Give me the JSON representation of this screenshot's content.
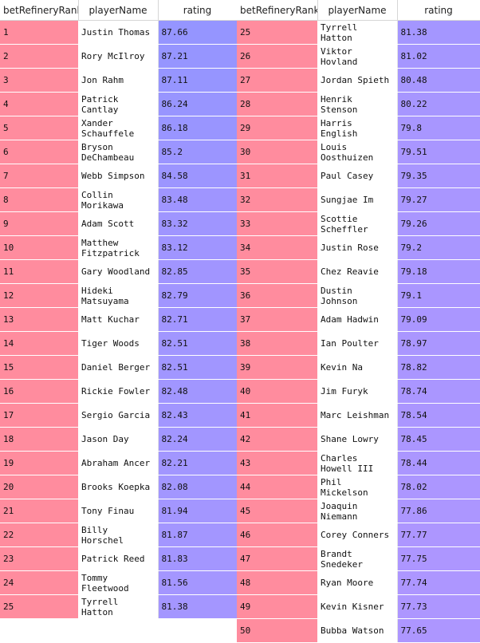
{
  "colors": {
    "rank_cell": "#ff8c9e",
    "name_cell": "#ffffff",
    "rating_high": "#9595ff",
    "rating_low": "#ad96ff"
  },
  "columns": {
    "rank": "betRefineryRank",
    "name": "playerName",
    "rating": "rating"
  },
  "left_rows": [
    {
      "rank": "1",
      "name": "Justin Thomas",
      "rating": "87.66"
    },
    {
      "rank": "2",
      "name": "Rory McIlroy",
      "rating": "87.21"
    },
    {
      "rank": "3",
      "name": "Jon Rahm",
      "rating": "87.11"
    },
    {
      "rank": "4",
      "name": "Patrick Cantlay",
      "rating": "86.24"
    },
    {
      "rank": "5",
      "name": "Xander Schauffele",
      "rating": "86.18"
    },
    {
      "rank": "6",
      "name": "Bryson DeChambeau",
      "rating": "85.2"
    },
    {
      "rank": "7",
      "name": "Webb Simpson",
      "rating": "84.58"
    },
    {
      "rank": "8",
      "name": "Collin Morikawa",
      "rating": "83.48"
    },
    {
      "rank": "9",
      "name": "Adam Scott",
      "rating": "83.32"
    },
    {
      "rank": "10",
      "name": "Matthew Fitzpatrick",
      "rating": "83.12"
    },
    {
      "rank": "11",
      "name": "Gary Woodland",
      "rating": "82.85"
    },
    {
      "rank": "12",
      "name": "Hideki Matsuyama",
      "rating": "82.79"
    },
    {
      "rank": "13",
      "name": "Matt Kuchar",
      "rating": "82.71"
    },
    {
      "rank": "14",
      "name": "Tiger Woods",
      "rating": "82.51"
    },
    {
      "rank": "15",
      "name": "Daniel Berger",
      "rating": "82.51"
    },
    {
      "rank": "16",
      "name": "Rickie Fowler",
      "rating": "82.48"
    },
    {
      "rank": "17",
      "name": "Sergio Garcia",
      "rating": "82.43"
    },
    {
      "rank": "18",
      "name": "Jason Day",
      "rating": "82.24"
    },
    {
      "rank": "19",
      "name": "Abraham Ancer",
      "rating": "82.21"
    },
    {
      "rank": "20",
      "name": "Brooks Koepka",
      "rating": "82.08"
    },
    {
      "rank": "21",
      "name": "Tony Finau",
      "rating": "81.94"
    },
    {
      "rank": "22",
      "name": "Billy Horschel",
      "rating": "81.87"
    },
    {
      "rank": "23",
      "name": "Patrick Reed",
      "rating": "81.83"
    },
    {
      "rank": "24",
      "name": "Tommy Fleetwood",
      "rating": "81.56"
    },
    {
      "rank": "25",
      "name": "Tyrrell Hatton",
      "rating": "81.38"
    }
  ],
  "right_rows": [
    {
      "rank": "25",
      "name": "Tyrrell Hatton",
      "rating": "81.38"
    },
    {
      "rank": "26",
      "name": "Viktor Hovland",
      "rating": "81.02"
    },
    {
      "rank": "27",
      "name": "Jordan Spieth",
      "rating": "80.48"
    },
    {
      "rank": "28",
      "name": "Henrik Stenson",
      "rating": "80.22"
    },
    {
      "rank": "29",
      "name": "Harris English",
      "rating": "79.8"
    },
    {
      "rank": "30",
      "name": "Louis Oosthuizen",
      "rating": "79.51"
    },
    {
      "rank": "31",
      "name": "Paul Casey",
      "rating": "79.35"
    },
    {
      "rank": "32",
      "name": "Sungjae Im",
      "rating": "79.27"
    },
    {
      "rank": "33",
      "name": "Scottie Scheffler",
      "rating": "79.26"
    },
    {
      "rank": "34",
      "name": "Justin Rose",
      "rating": "79.2"
    },
    {
      "rank": "35",
      "name": "Chez Reavie",
      "rating": "79.18"
    },
    {
      "rank": "36",
      "name": "Dustin Johnson",
      "rating": "79.1"
    },
    {
      "rank": "37",
      "name": "Adam Hadwin",
      "rating": "79.09"
    },
    {
      "rank": "38",
      "name": "Ian Poulter",
      "rating": "78.97"
    },
    {
      "rank": "39",
      "name": "Kevin Na",
      "rating": "78.82"
    },
    {
      "rank": "40",
      "name": "Jim Furyk",
      "rating": "78.74"
    },
    {
      "rank": "41",
      "name": "Marc Leishman",
      "rating": "78.54"
    },
    {
      "rank": "42",
      "name": "Shane Lowry",
      "rating": "78.45"
    },
    {
      "rank": "43",
      "name": "Charles Howell III",
      "rating": "78.44"
    },
    {
      "rank": "44",
      "name": "Phil Mickelson",
      "rating": "78.02"
    },
    {
      "rank": "45",
      "name": "Joaquin Niemann",
      "rating": "77.86"
    },
    {
      "rank": "46",
      "name": "Corey Conners",
      "rating": "77.77"
    },
    {
      "rank": "47",
      "name": "Brandt Snedeker",
      "rating": "77.75"
    },
    {
      "rank": "48",
      "name": "Ryan Moore",
      "rating": "77.74"
    },
    {
      "rank": "49",
      "name": "Kevin Kisner",
      "rating": "77.73"
    },
    {
      "rank": "50",
      "name": "Bubba Watson",
      "rating": "77.65"
    }
  ]
}
